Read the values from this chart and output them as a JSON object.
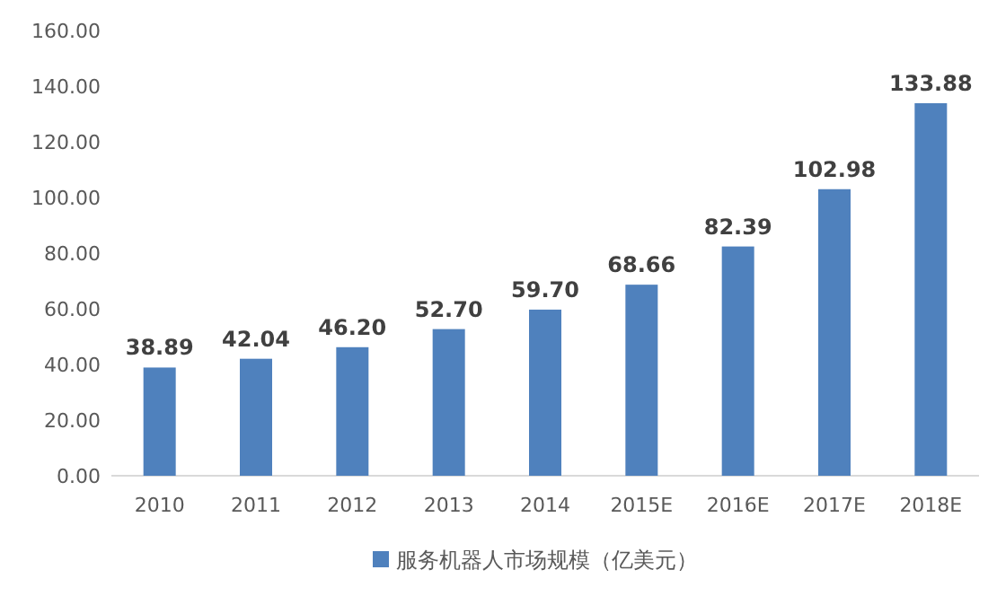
{
  "chart_data": {
    "type": "bar",
    "categories": [
      "2010",
      "2011",
      "2012",
      "2013",
      "2014",
      "2015E",
      "2016E",
      "2017E",
      "2018E"
    ],
    "series": [
      {
        "name": "服务机器人市场规模（亿美元）",
        "color": "#4f81bd",
        "values": [
          38.89,
          42.04,
          46.2,
          52.7,
          59.7,
          68.66,
          82.39,
          102.98,
          133.88
        ],
        "value_labels": [
          "38.89",
          "42.04",
          "46.20",
          "52.70",
          "59.70",
          "68.66",
          "82.39",
          "102.98",
          "133.88"
        ]
      }
    ],
    "ylim": [
      0,
      160
    ],
    "yticks": [
      {
        "value": 0,
        "label": "0.00"
      },
      {
        "value": 20,
        "label": "20.00"
      },
      {
        "value": 40,
        "label": "40.00"
      },
      {
        "value": 60,
        "label": "60.00"
      },
      {
        "value": 80,
        "label": "80.00"
      },
      {
        "value": 100,
        "label": "100.00"
      },
      {
        "value": 120,
        "label": "120.00"
      },
      {
        "value": 140,
        "label": "140.00"
      },
      {
        "value": 160,
        "label": "160.00"
      }
    ],
    "grid": false,
    "legend": "bottom"
  }
}
